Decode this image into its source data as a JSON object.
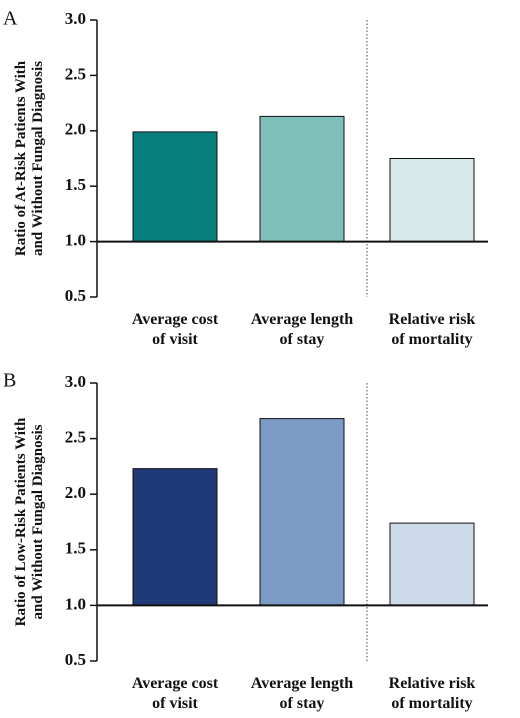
{
  "chart_data": [
    {
      "type": "bar",
      "panel_label": "A",
      "categories": [
        [
          "Average cost",
          "of visit"
        ],
        [
          "Average length",
          "of stay"
        ],
        [
          "Relative risk",
          "of mortality"
        ]
      ],
      "values": [
        1.99,
        2.13,
        1.75
      ],
      "colors": [
        "#067f7d",
        "#7fbfba",
        "#d5e9ea"
      ],
      "ylabel": [
        "Ratio of At-Risk Patients With",
        "and Without Fungal Diagnosis"
      ],
      "ylim": [
        0.5,
        3.0
      ],
      "yticks": [
        "0.5",
        "1.0",
        "1.5",
        "2.0",
        "2.5",
        "3.0"
      ],
      "baseline": 1.0,
      "separator_after_category": 2,
      "grid": false
    },
    {
      "type": "bar",
      "panel_label": "B",
      "categories": [
        [
          "Average cost",
          "of visit"
        ],
        [
          "Average length",
          "of stay"
        ],
        [
          "Relative risk",
          "of mortality"
        ]
      ],
      "values": [
        2.23,
        2.68,
        1.74
      ],
      "colors": [
        "#203a78",
        "#7b9bc4",
        "#ccdaeb"
      ],
      "ylabel": [
        "Ratio of Low-Risk Patients With",
        "and Without Fungal Diagnosis"
      ],
      "ylim": [
        0.5,
        3.0
      ],
      "yticks": [
        "0.5",
        "1.0",
        "1.5",
        "2.0",
        "2.5",
        "3.0"
      ],
      "baseline": 1.0,
      "separator_after_category": 2,
      "grid": false
    }
  ]
}
